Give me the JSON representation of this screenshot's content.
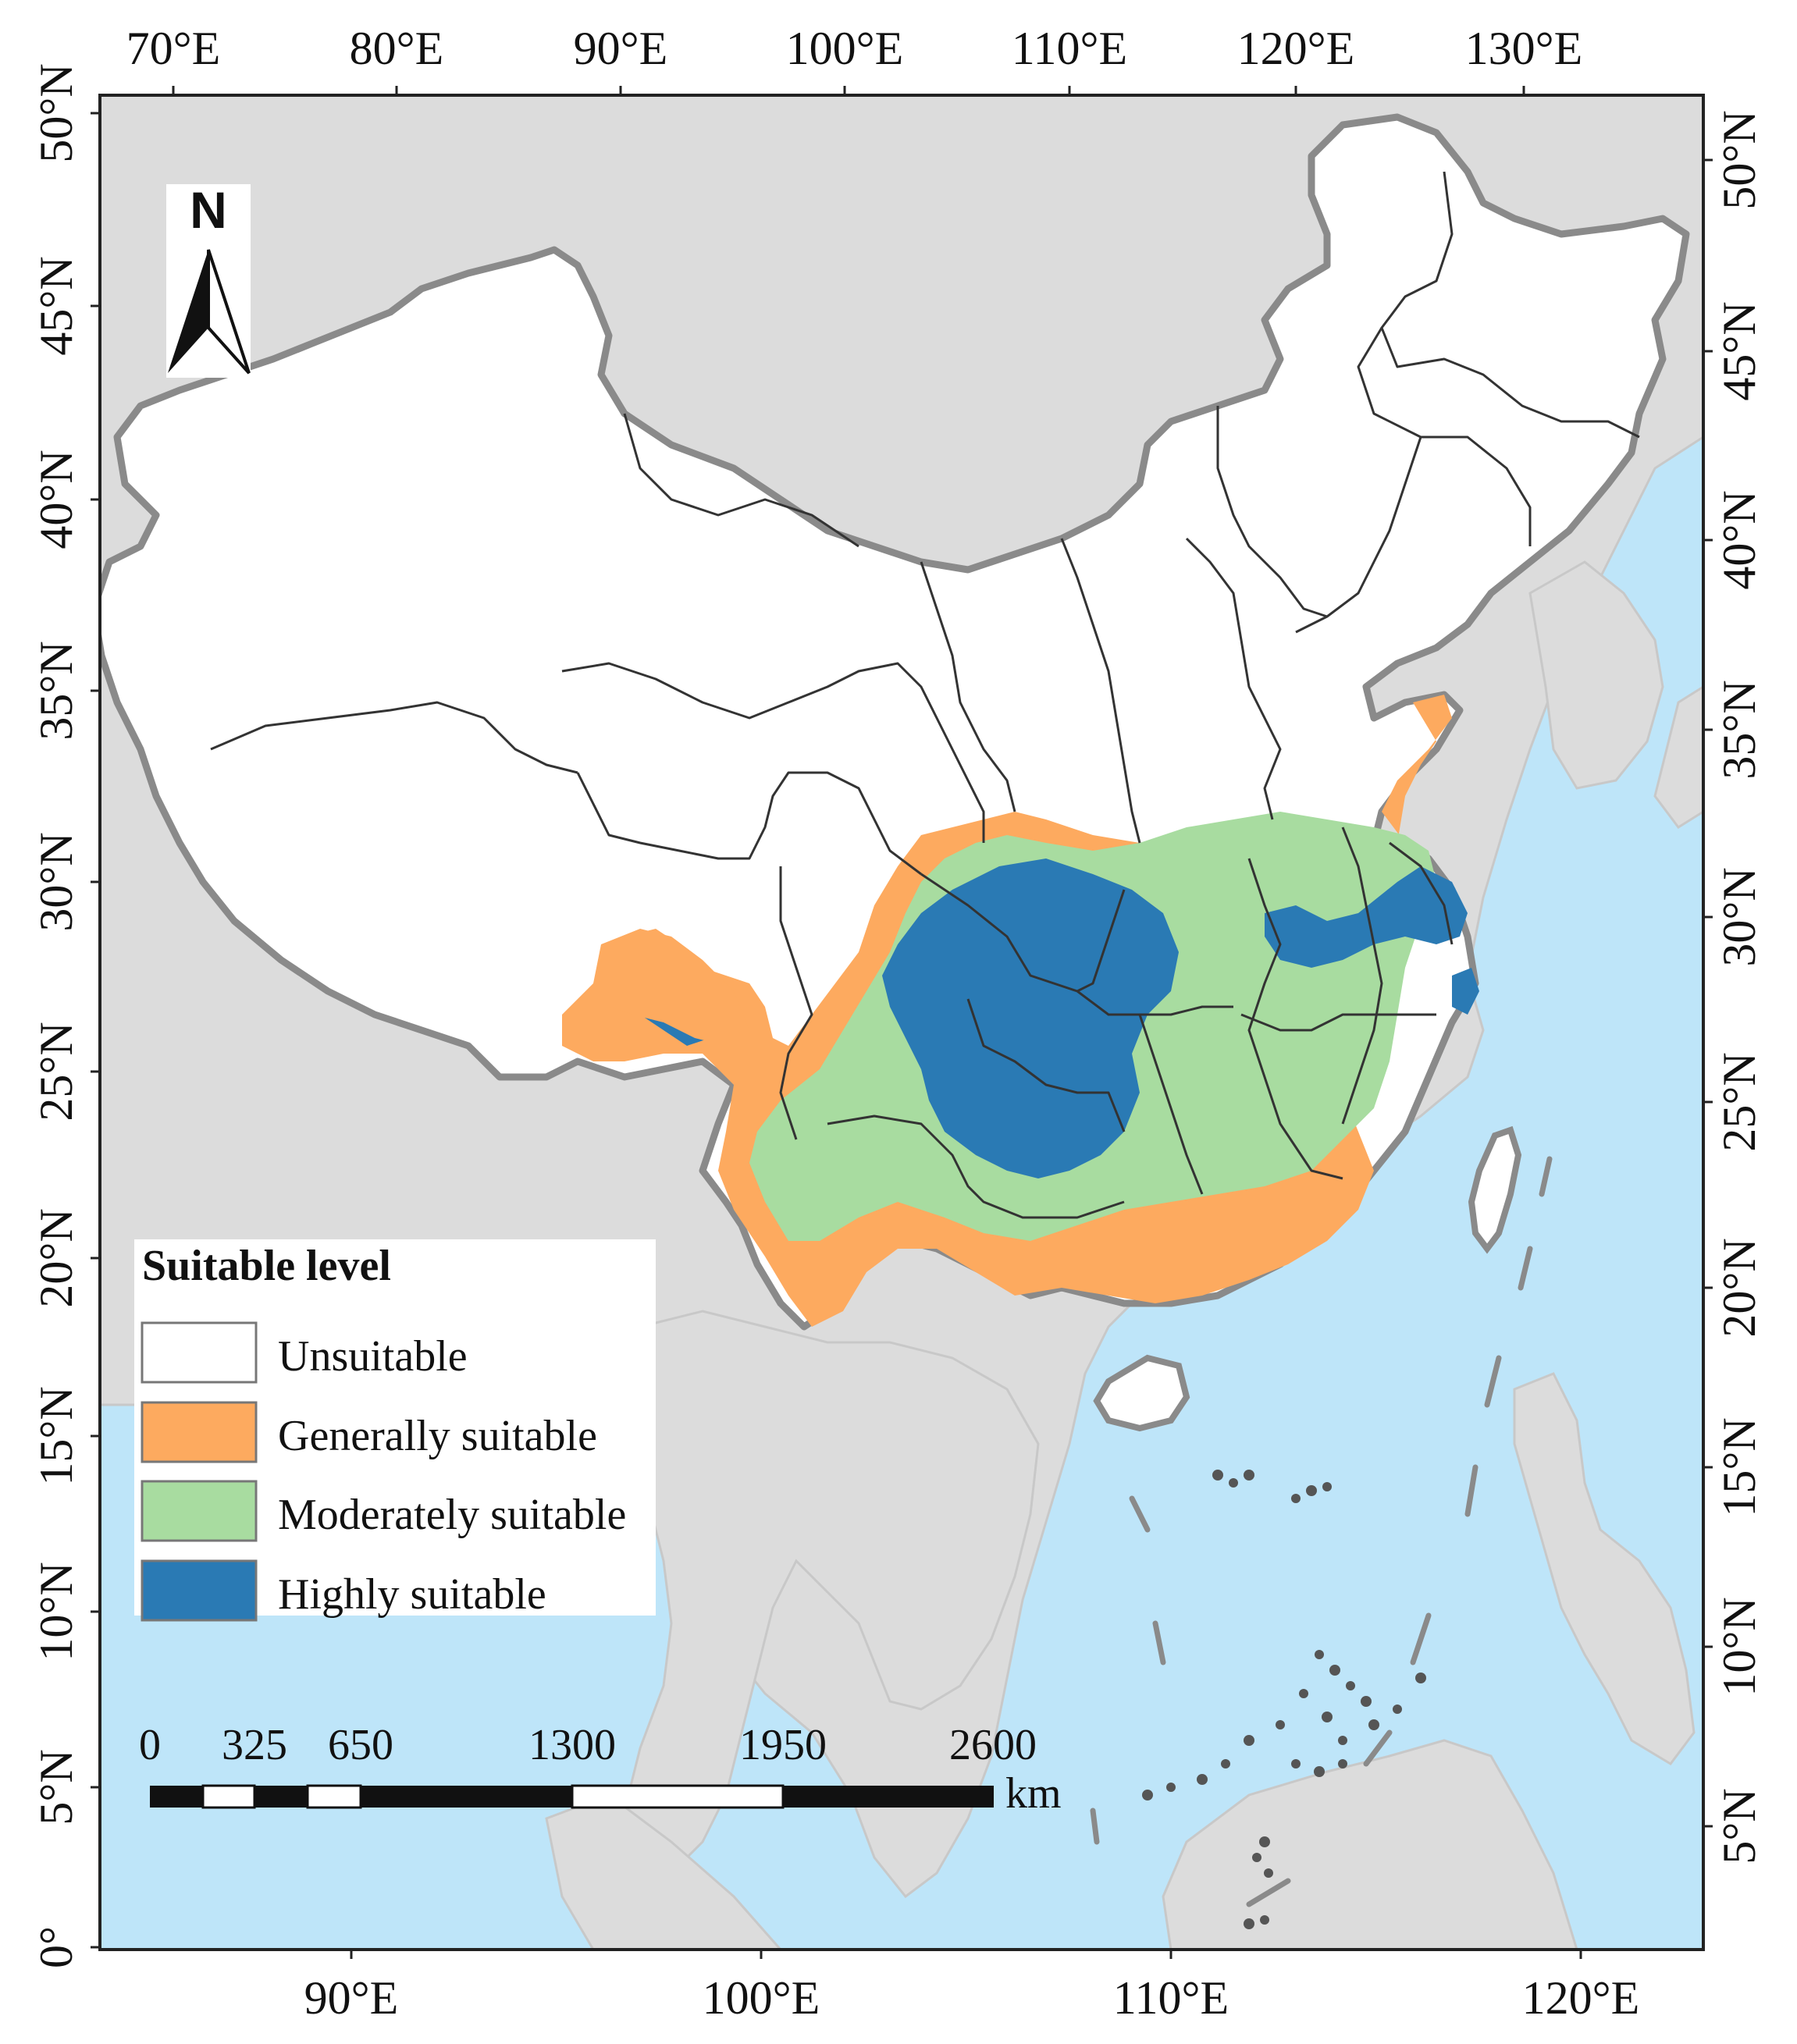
{
  "colors": {
    "sea": "#bee5f9",
    "land": "#dcdcdc",
    "unsuitable": "#ffffff",
    "generally_suitable": "#fdaa5f",
    "moderately_suitable": "#a8dca0",
    "highly_suitable": "#2a7ab4",
    "border": "#333333",
    "country_outline": "#8a8a8a"
  },
  "top_axis": {
    "labels": [
      "70°E",
      "80°E",
      "90°E",
      "100°E",
      "110°E",
      "120°E",
      "130°E"
    ]
  },
  "bottom_axis": {
    "labels": [
      "90°E",
      "100°E",
      "110°E",
      "120°E"
    ]
  },
  "left_axis": {
    "labels": [
      "50°N",
      "45°N",
      "40°N",
      "35°N",
      "30°N",
      "25°N",
      "20°N",
      "15°N",
      "10°N",
      "5°N",
      "0°"
    ]
  },
  "right_axis": {
    "labels": [
      "50°N",
      "45°N",
      "40°N",
      "35°N",
      "30°N",
      "25°N",
      "20°N",
      "15°N",
      "10°N",
      "5°N"
    ]
  },
  "north_arrow": {
    "label": "N"
  },
  "legend": {
    "title": "Suitable level",
    "items": [
      {
        "label": "Unsuitable",
        "color": "#ffffff"
      },
      {
        "label": "Generally suitable",
        "color": "#fdaa5f"
      },
      {
        "label": "Moderately suitable",
        "color": "#a8dca0"
      },
      {
        "label": "Highly suitable",
        "color": "#2a7ab4"
      }
    ]
  },
  "scale_bar": {
    "ticks": [
      "0",
      "325",
      "650",
      "1300",
      "1950",
      "2600"
    ],
    "unit": "km"
  }
}
